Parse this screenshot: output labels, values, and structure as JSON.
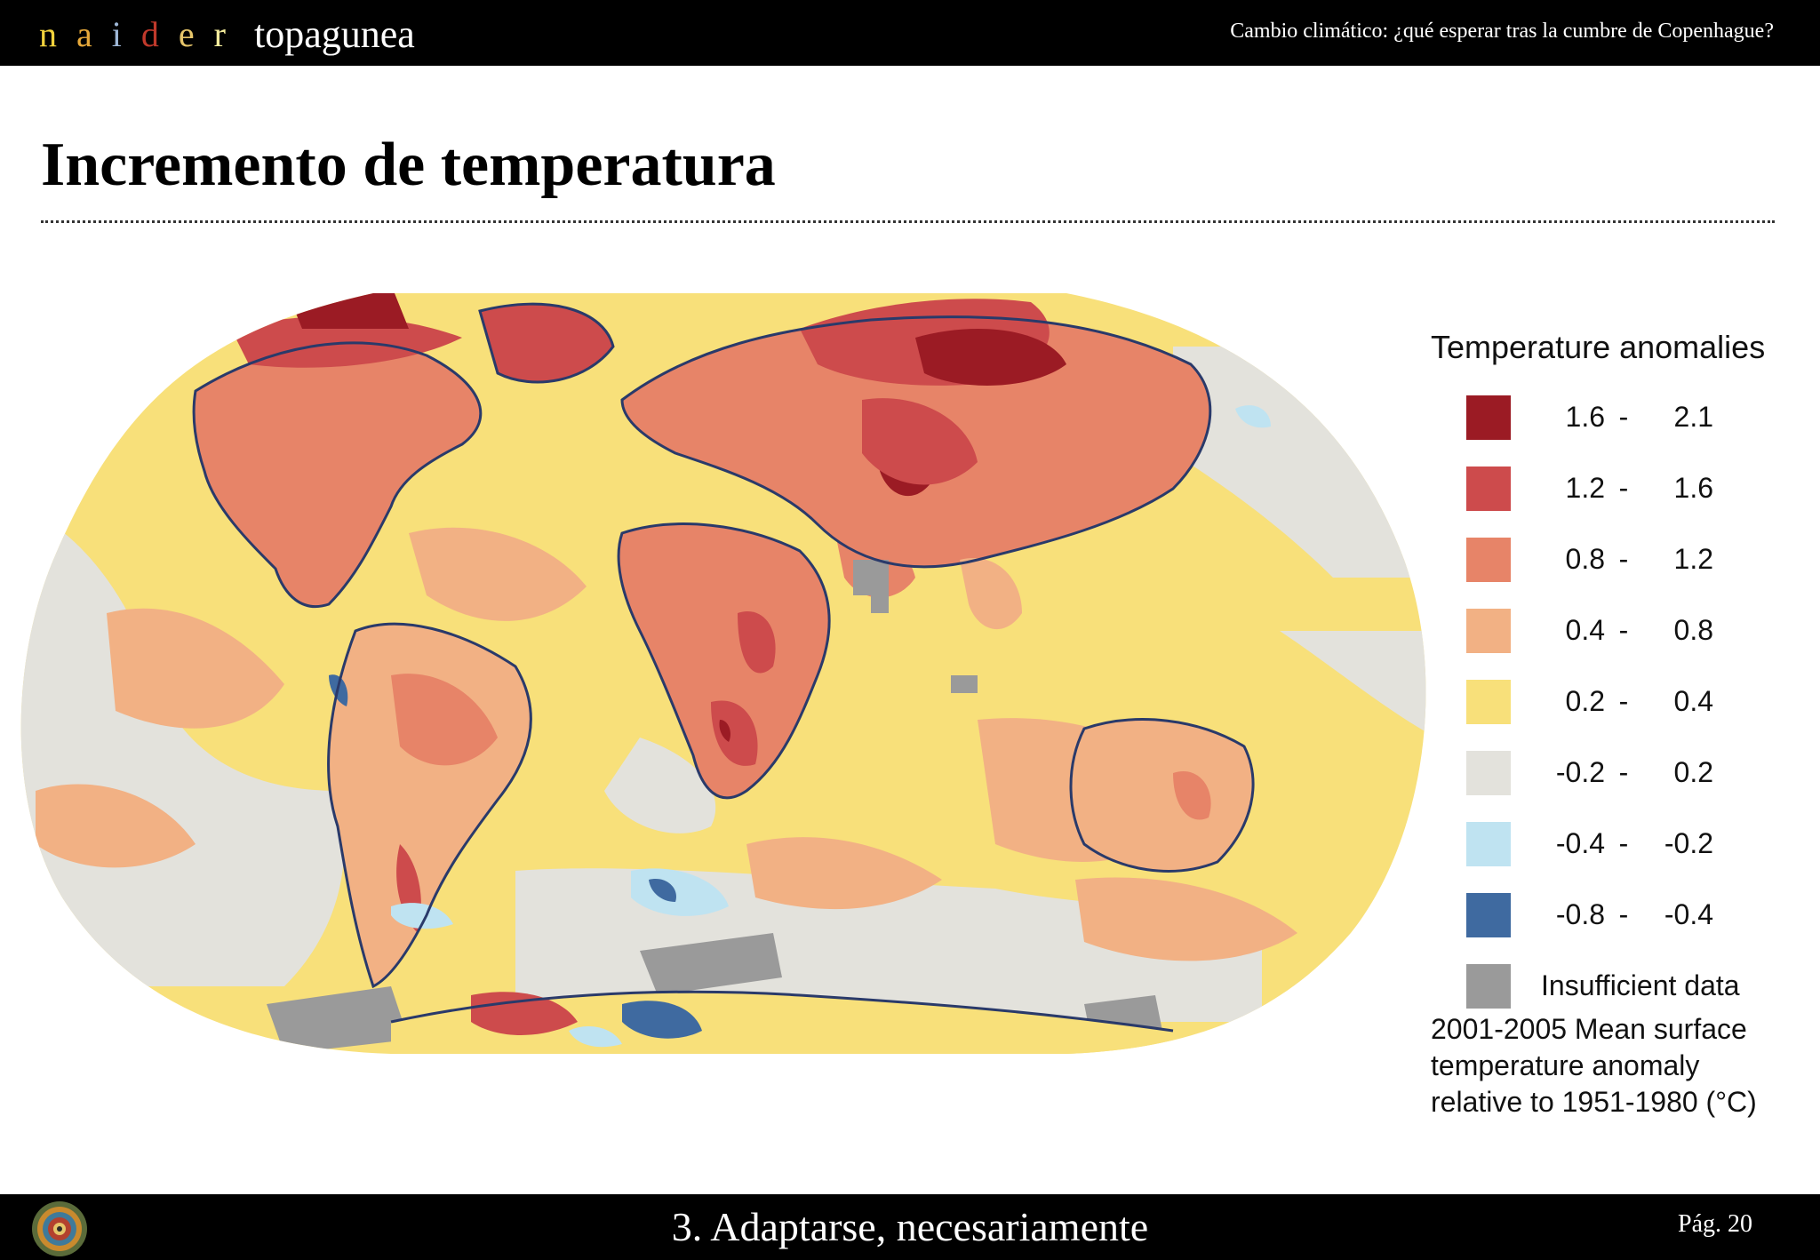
{
  "header": {
    "brand_letters": [
      {
        "char": "n",
        "color": "#f2d23c"
      },
      {
        "char": "a",
        "color": "#e7a93a"
      },
      {
        "char": "i",
        "color": "#9fb8d8"
      },
      {
        "char": "d",
        "color": "#c0392b"
      },
      {
        "char": "e",
        "color": "#e6c56a"
      },
      {
        "char": "r",
        "color": "#f4ec9c"
      }
    ],
    "brand_word": "topagunea",
    "presentation_title": "Cambio climático: ¿qué esperar tras la cumbre de Copenhague?"
  },
  "slide": {
    "title": "Incremento de temperatura"
  },
  "legend": {
    "title": "Temperature anomalies",
    "separator": "-",
    "classes": [
      {
        "lo": "1.6",
        "hi": "2.1",
        "color": "#9b1b24"
      },
      {
        "lo": "1.2",
        "hi": "1.6",
        "color": "#cd4b4c"
      },
      {
        "lo": "0.8",
        "hi": "1.2",
        "color": "#e78468"
      },
      {
        "lo": "0.4",
        "hi": "0.8",
        "color": "#f2b184"
      },
      {
        "lo": "0.2",
        "hi": "0.4",
        "color": "#f8e07a"
      },
      {
        "lo": "-0.2",
        "hi": "0.2",
        "color": "#e3e2dc"
      },
      {
        "lo": "-0.4",
        "hi": "-0.2",
        "color": "#bfe3f1"
      },
      {
        "lo": "-0.8",
        "hi": "-0.4",
        "color": "#3f6aa0"
      }
    ],
    "insufficient": {
      "label": "Insufficient data",
      "color": "#9a9a9a"
    },
    "caption_lines": [
      "2001-2005 Mean surface",
      "temperature anomaly",
      "relative to 1951-1980 (°C)"
    ]
  },
  "footer": {
    "section_title": "3. Adaptarse, necesariamente",
    "page_label": "Pág. 20"
  }
}
